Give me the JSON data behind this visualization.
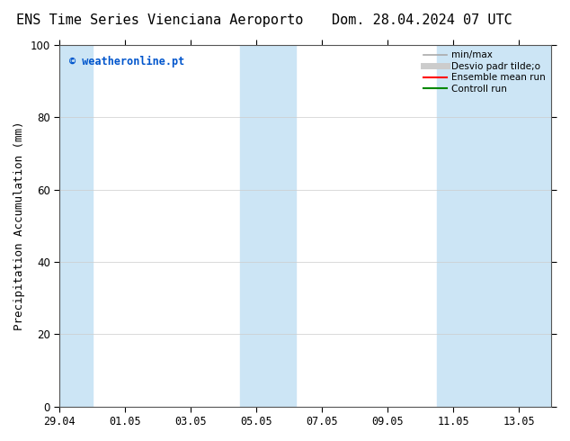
{
  "title_left": "ENS Time Series Vienciana Aeroporto",
  "title_right": "Dom. 28.04.2024 07 UTC",
  "ylabel": "Precipitation Accumulation (mm)",
  "watermark": "© weatheronline.pt",
  "watermark_color": "#0055cc",
  "ylim": [
    0,
    100
  ],
  "xlim": [
    0,
    15
  ],
  "xtick_labels": [
    "29.04",
    "01.05",
    "03.05",
    "05.05",
    "07.05",
    "09.05",
    "11.05",
    "13.05"
  ],
  "xtick_positions": [
    0,
    2,
    4,
    6,
    8,
    10,
    12,
    14
  ],
  "shaded_regions": [
    {
      "x_start": -0.15,
      "x_end": 1.0,
      "color": "#cce5f5",
      "alpha": 1.0
    },
    {
      "x_start": 5.5,
      "x_end": 7.2,
      "color": "#cce5f5",
      "alpha": 1.0
    },
    {
      "x_start": 11.5,
      "x_end": 15.2,
      "color": "#cce5f5",
      "alpha": 1.0
    }
  ],
  "legend_entries": [
    {
      "label": "min/max",
      "color": "#aaaaaa",
      "lw": 1.2
    },
    {
      "label": "Desvio padr tilde;o",
      "color": "#cccccc",
      "lw": 5
    },
    {
      "label": "Ensemble mean run",
      "color": "#ff0000",
      "lw": 1.5
    },
    {
      "label": "Controll run",
      "color": "#008800",
      "lw": 1.5
    }
  ],
  "bg_color": "#ffffff",
  "plot_bg_color": "#ffffff",
  "grid_color": "#cccccc",
  "title_fontsize": 11,
  "axis_fontsize": 9,
  "tick_fontsize": 8.5,
  "ytick_positions": [
    0,
    20,
    40,
    60,
    80,
    100
  ]
}
